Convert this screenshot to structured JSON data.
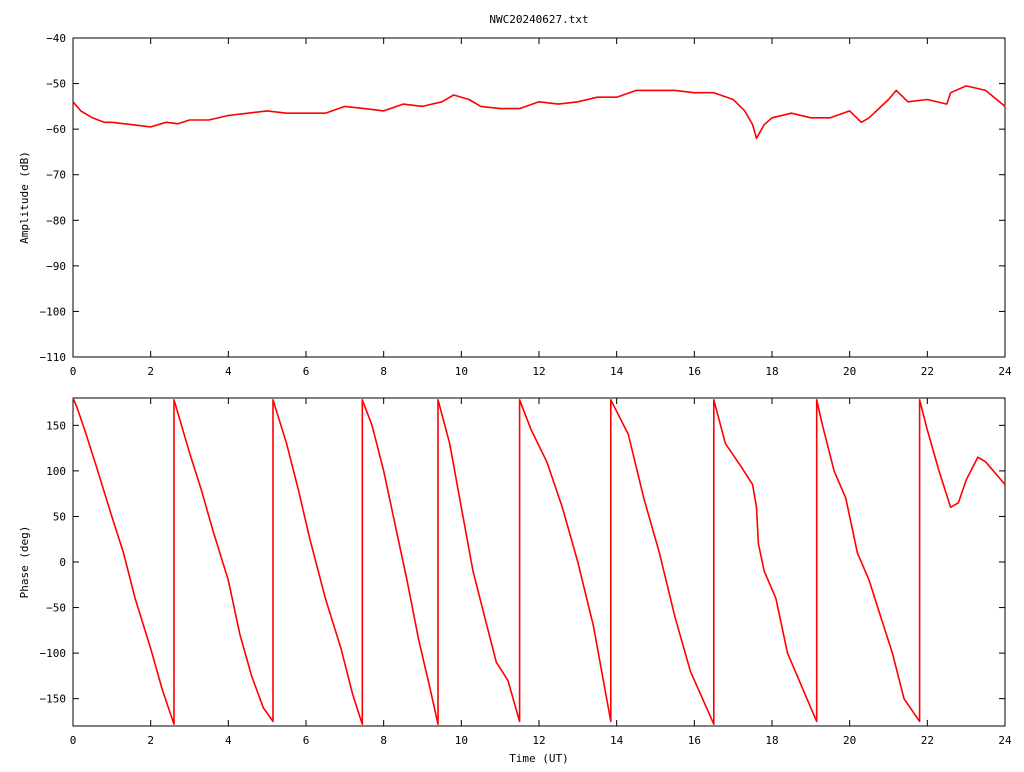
{
  "page_title": "NWC20240627.txt",
  "chart_data": [
    {
      "type": "line",
      "ylabel": "Amplitude (dB)",
      "xlim": [
        0,
        24
      ],
      "ylim": [
        -110,
        -40
      ],
      "xticks": [
        0,
        2,
        4,
        6,
        8,
        10,
        12,
        14,
        16,
        18,
        20,
        22,
        24
      ],
      "yticks": [
        -40,
        -50,
        -60,
        -70,
        -80,
        -90,
        -100,
        -110
      ],
      "grid": false,
      "color": "#ff0000",
      "series": [
        {
          "x": [
            0,
            0.2,
            0.5,
            0.8,
            1.0,
            1.5,
            2.0,
            2.4,
            2.7,
            3.0,
            3.5,
            4.0,
            4.5,
            5.0,
            5.5,
            6.0,
            6.5,
            7.0,
            7.5,
            8.0,
            8.5,
            9.0,
            9.5,
            9.8,
            10.2,
            10.5,
            11.0,
            11.5,
            12.0,
            12.5,
            13.0,
            13.5,
            14.0,
            14.5,
            15.0,
            15.5,
            16.0,
            16.5,
            17.0,
            17.3,
            17.5,
            17.6,
            17.8,
            18.0,
            18.5,
            19.0,
            19.5,
            20.0,
            20.3,
            20.5,
            21.0,
            21.2,
            21.5,
            22.0,
            22.5,
            22.6,
            23.0,
            23.5,
            24.0
          ],
          "y": [
            -54,
            -56,
            -57.5,
            -58.5,
            -58.5,
            -59,
            -59.5,
            -58.5,
            -58.8,
            -58,
            -58,
            -57,
            -56.5,
            -56,
            -56.5,
            -56.5,
            -56.5,
            -55,
            -55.5,
            -56,
            -54.5,
            -55,
            -54,
            -52.5,
            -53.5,
            -55,
            -55.5,
            -55.5,
            -54,
            -54.5,
            -54,
            -53,
            -53,
            -51.5,
            -51.5,
            -51.5,
            -52,
            -52,
            -53.5,
            -56,
            -59,
            -62,
            -59,
            -57.5,
            -56.5,
            -57.5,
            -57.5,
            -56,
            -58.5,
            -57.5,
            -53.5,
            -51.5,
            -54,
            -53.5,
            -54.5,
            -52,
            -50.5,
            -51.5,
            -55
          ]
        }
      ]
    },
    {
      "type": "line",
      "xlabel": "Time (UT)",
      "ylabel": "Phase (deg)",
      "xlim": [
        0,
        24
      ],
      "ylim": [
        -180,
        180
      ],
      "xticks": [
        0,
        2,
        4,
        6,
        8,
        10,
        12,
        14,
        16,
        18,
        20,
        22,
        24
      ],
      "yticks": [
        150,
        100,
        50,
        0,
        -50,
        -100,
        -150
      ],
      "grid": false,
      "color": "#ff0000",
      "series": [
        {
          "x": [
            0,
            0.1,
            0.3,
            0.6,
            1.0,
            1.3,
            1.6,
            2.0,
            2.3,
            2.6,
            2.6,
            3.0,
            3.3,
            3.6,
            4.0,
            4.3,
            4.6,
            4.9,
            5.15,
            5.15,
            5.5,
            5.8,
            6.1,
            6.5,
            6.9,
            7.2,
            7.45,
            7.45,
            7.7,
            8.0,
            8.3,
            8.6,
            8.9,
            9.2,
            9.4,
            9.4,
            9.7,
            10.0,
            10.3,
            10.6,
            10.9,
            11.2,
            11.5,
            11.5,
            11.8,
            12.2,
            12.6,
            13.0,
            13.4,
            13.85,
            13.85,
            14.3,
            14.7,
            15.1,
            15.5,
            15.9,
            16.5,
            16.5,
            16.8,
            17.2,
            17.5,
            17.6,
            17.65,
            17.8,
            18.1,
            18.4,
            18.6,
            18.9,
            19.15,
            19.15,
            19.3,
            19.6,
            19.9,
            20.2,
            20.5,
            20.8,
            21.1,
            21.4,
            21.8,
            21.8,
            22.0,
            22.3,
            22.6,
            22.8,
            23.0,
            23.3,
            23.5,
            23.8,
            24.0
          ],
          "y": [
            180,
            170,
            145,
            105,
            50,
            10,
            -40,
            -95,
            -140,
            -178,
            178,
            120,
            80,
            35,
            -20,
            -80,
            -125,
            -160,
            -175,
            178,
            130,
            80,
            25,
            -40,
            -95,
            -145,
            -178,
            178,
            150,
            100,
            40,
            -20,
            -85,
            -140,
            -178,
            178,
            130,
            60,
            -10,
            -60,
            -110,
            -130,
            -175,
            178,
            145,
            110,
            60,
            0,
            -70,
            -175,
            178,
            140,
            70,
            10,
            -60,
            -120,
            -178,
            178,
            130,
            105,
            85,
            60,
            20,
            -10,
            -40,
            -100,
            -120,
            -150,
            -175,
            178,
            150,
            100,
            70,
            10,
            -20,
            -60,
            -100,
            -150,
            -175,
            178,
            145,
            100,
            60,
            65,
            90,
            115,
            110,
            95,
            85
          ]
        }
      ]
    }
  ]
}
